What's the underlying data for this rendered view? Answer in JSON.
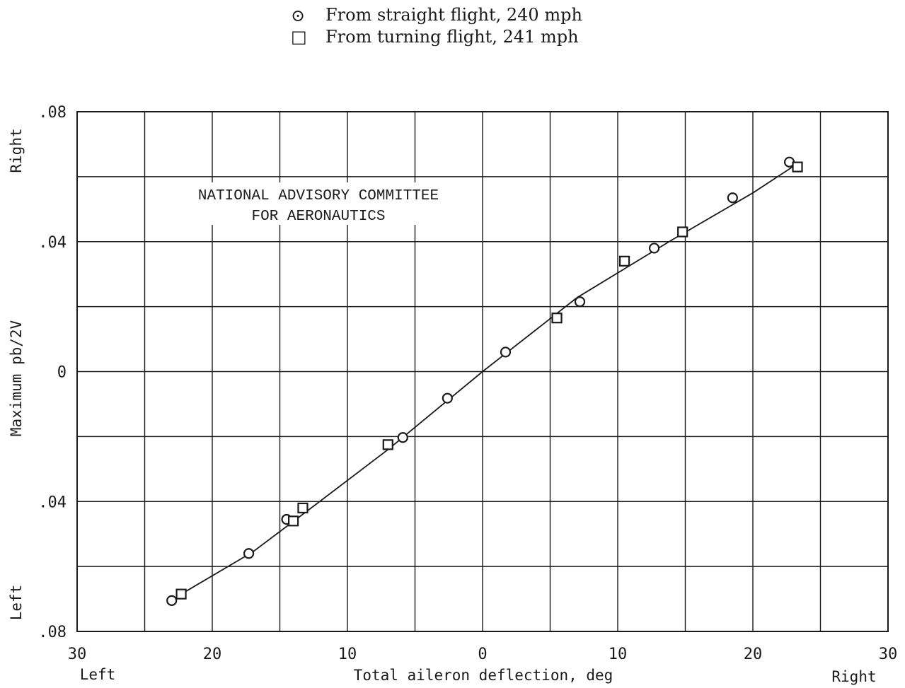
{
  "legend": {
    "straight_label": "From straight flight, 240 mph",
    "turning_label": "From turning flight, 241 mph",
    "straight_symbol": "⊙",
    "turning_symbol": "□"
  },
  "stamp": {
    "line1": "NATIONAL ADVISORY COMMITTEE",
    "line2": "FOR AERONAUTICS"
  },
  "chart_data": {
    "type": "scatter",
    "xlabel": "Total aileron deflection, deg",
    "ylabel": "Maximum pb/2V",
    "x_side_labels": {
      "left": "Left",
      "right": "Right"
    },
    "y_side_labels": {
      "top": "Right",
      "bottom": "Left"
    },
    "xlim": [
      -30,
      30
    ],
    "ylim": [
      -0.08,
      0.08
    ],
    "x_ticks": [
      {
        "value": -30,
        "label": "30"
      },
      {
        "value": -20,
        "label": "20"
      },
      {
        "value": -10,
        "label": "10"
      },
      {
        "value": 0,
        "label": "0"
      },
      {
        "value": 10,
        "label": "10"
      },
      {
        "value": 20,
        "label": "20"
      },
      {
        "value": 30,
        "label": "30"
      }
    ],
    "y_ticks": [
      {
        "value": 0.08,
        "label": ".08"
      },
      {
        "value": 0.04,
        "label": ".04"
      },
      {
        "value": 0,
        "label": "0"
      },
      {
        "value": -0.04,
        "label": ".04"
      },
      {
        "value": -0.08,
        "label": ".08"
      }
    ],
    "grid": true,
    "grid_x_step": 5,
    "grid_y_step": 0.02,
    "series": [
      {
        "name": "From straight flight, 240 mph",
        "marker": "circle",
        "points": [
          {
            "x": -23.0,
            "y": -0.0705
          },
          {
            "x": -17.3,
            "y": -0.056
          },
          {
            "x": -14.5,
            "y": -0.0455
          },
          {
            "x": -5.9,
            "y": -0.0203
          },
          {
            "x": -2.6,
            "y": -0.0082
          },
          {
            "x": 1.7,
            "y": 0.006
          },
          {
            "x": 7.2,
            "y": 0.0215
          },
          {
            "x": 12.7,
            "y": 0.038
          },
          {
            "x": 18.5,
            "y": 0.0535
          },
          {
            "x": 22.7,
            "y": 0.0645
          }
        ]
      },
      {
        "name": "From turning flight, 241 mph",
        "marker": "square",
        "points": [
          {
            "x": -22.3,
            "y": -0.0685
          },
          {
            "x": -14.0,
            "y": -0.046
          },
          {
            "x": -13.3,
            "y": -0.042
          },
          {
            "x": -7.0,
            "y": -0.0225
          },
          {
            "x": 5.5,
            "y": 0.0165
          },
          {
            "x": 10.5,
            "y": 0.034
          },
          {
            "x": 14.8,
            "y": 0.043
          },
          {
            "x": 23.3,
            "y": 0.063
          }
        ]
      }
    ],
    "fit_line": [
      {
        "x": -22.3,
        "y": -0.0685
      },
      {
        "x": -17.0,
        "y": -0.0555
      },
      {
        "x": -13.0,
        "y": -0.043
      },
      {
        "x": -7.0,
        "y": -0.024
      },
      {
        "x": 0.0,
        "y": 0.0
      },
      {
        "x": 7.0,
        "y": 0.0228
      },
      {
        "x": 14.0,
        "y": 0.0405
      },
      {
        "x": 20.0,
        "y": 0.055
      },
      {
        "x": 23.3,
        "y": 0.064
      }
    ]
  }
}
